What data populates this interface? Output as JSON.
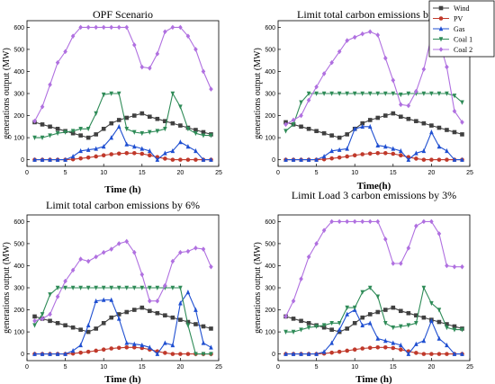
{
  "chart_data": {
    "type": "line",
    "legend": {
      "placement": "top-right",
      "series": [
        {
          "name": "Wind",
          "color": "#404040",
          "marker": "square"
        },
        {
          "name": "PV",
          "color": "#c0392b",
          "marker": "circle"
        },
        {
          "name": "Gas",
          "color": "#1f4fd1",
          "marker": "triangle-up"
        },
        {
          "name": "Coal 1",
          "color": "#2e8b57",
          "marker": "triangle-down"
        },
        {
          "name": "Coal 2",
          "color": "#b070e0",
          "marker": "diamond"
        }
      ]
    },
    "panels": [
      {
        "title": "OPF Scenario",
        "xlabel": "Time (h)",
        "ylabel": "generations output (MW)",
        "xlim": [
          0,
          25
        ],
        "ylim": [
          -30,
          630
        ],
        "xticks": [
          0,
          5,
          10,
          15,
          20,
          25
        ],
        "yticks": [
          0,
          100,
          200,
          300,
          400,
          500,
          600
        ],
        "x": [
          1,
          2,
          3,
          4,
          5,
          6,
          7,
          8,
          9,
          10,
          11,
          12,
          13,
          14,
          15,
          16,
          17,
          18,
          19,
          20,
          21,
          22,
          23,
          24
        ],
        "series": [
          {
            "name": "Wind",
            "values": [
              170,
              160,
              150,
              140,
              130,
              120,
              110,
              100,
              115,
              140,
              165,
              180,
              190,
              200,
              210,
              195,
              185,
              175,
              165,
              155,
              145,
              135,
              125,
              115
            ]
          },
          {
            "name": "PV",
            "values": [
              0,
              0,
              0,
              0,
              0,
              2,
              6,
              10,
              15,
              20,
              25,
              28,
              30,
              30,
              27,
              20,
              12,
              5,
              0,
              0,
              0,
              0,
              0,
              0
            ]
          },
          {
            "name": "Gas",
            "values": [
              0,
              0,
              0,
              0,
              0,
              15,
              40,
              45,
              50,
              60,
              100,
              150,
              70,
              60,
              50,
              40,
              0,
              30,
              40,
              80,
              60,
              40,
              0,
              0
            ]
          },
          {
            "name": "Coal 1",
            "values": [
              100,
              100,
              110,
              120,
              125,
              130,
              140,
              140,
              210,
              295,
              300,
              300,
              140,
              125,
              120,
              125,
              130,
              140,
              300,
              240,
              140,
              120,
              110,
              110
            ]
          },
          {
            "name": "Coal 2",
            "values": [
              175,
              240,
              340,
              440,
              490,
              560,
              600,
              600,
              600,
              600,
              600,
              600,
              600,
              520,
              420,
              415,
              480,
              580,
              600,
              600,
              560,
              500,
              400,
              320
            ]
          }
        ]
      },
      {
        "title": "Limit total carbon emissions by 3%",
        "xlabel": "Time(h)",
        "ylabel": "generations output (MW)",
        "xlim": [
          0,
          25
        ],
        "ylim": [
          -30,
          630
        ],
        "xticks": [
          0,
          5,
          10,
          15,
          20,
          25
        ],
        "yticks": [
          0,
          100,
          200,
          300,
          400,
          500,
          600
        ],
        "x": [
          1,
          2,
          3,
          4,
          5,
          6,
          7,
          8,
          9,
          10,
          11,
          12,
          13,
          14,
          15,
          16,
          17,
          18,
          19,
          20,
          21,
          22,
          23,
          24
        ],
        "series": [
          {
            "name": "Wind",
            "values": [
              170,
              160,
              150,
              140,
              130,
              120,
              110,
              100,
              115,
              140,
              165,
              180,
              190,
              200,
              210,
              195,
              185,
              175,
              165,
              155,
              145,
              135,
              125,
              115
            ]
          },
          {
            "name": "PV",
            "values": [
              0,
              0,
              0,
              0,
              0,
              2,
              6,
              10,
              15,
              20,
              25,
              28,
              30,
              30,
              27,
              20,
              12,
              5,
              0,
              0,
              0,
              0,
              0,
              0
            ]
          },
          {
            "name": "Gas",
            "values": [
              0,
              0,
              0,
              0,
              0,
              15,
              40,
              45,
              50,
              140,
              150,
              150,
              65,
              60,
              50,
              40,
              0,
              30,
              40,
              125,
              60,
              40,
              0,
              0
            ]
          },
          {
            "name": "Coal 1",
            "values": [
              130,
              160,
              260,
              300,
              300,
              300,
              300,
              300,
              300,
              300,
              300,
              300,
              300,
              300,
              300,
              295,
              300,
              300,
              300,
              300,
              300,
              300,
              290,
              260
            ]
          },
          {
            "name": "Coal 2",
            "values": [
              160,
              180,
              200,
              270,
              330,
              390,
              440,
              490,
              540,
              555,
              570,
              580,
              565,
              460,
              360,
              250,
              245,
              310,
              410,
              560,
              540,
              420,
              220,
              170
            ]
          }
        ]
      },
      {
        "title": "Limit total carbon emissions by 6%",
        "xlabel": "Time (h)",
        "ylabel": "generations output (MW)",
        "xlim": [
          0,
          25
        ],
        "ylim": [
          -30,
          630
        ],
        "xticks": [
          0,
          5,
          10,
          15,
          20,
          25
        ],
        "yticks": [
          0,
          100,
          200,
          300,
          400,
          500,
          600
        ],
        "x": [
          1,
          2,
          3,
          4,
          5,
          6,
          7,
          8,
          9,
          10,
          11,
          12,
          13,
          14,
          15,
          16,
          17,
          18,
          19,
          20,
          21,
          22,
          23,
          24
        ],
        "series": [
          {
            "name": "Wind",
            "values": [
              170,
              160,
              150,
              140,
              130,
              120,
              110,
              100,
              115,
              140,
              165,
              180,
              190,
              200,
              210,
              195,
              185,
              175,
              165,
              155,
              145,
              135,
              125,
              115
            ]
          },
          {
            "name": "PV",
            "values": [
              0,
              0,
              0,
              0,
              0,
              2,
              6,
              10,
              15,
              20,
              25,
              28,
              30,
              30,
              27,
              20,
              12,
              5,
              0,
              0,
              0,
              0,
              0,
              0
            ]
          },
          {
            "name": "Gas",
            "values": [
              0,
              0,
              0,
              0,
              0,
              15,
              40,
              130,
              240,
              245,
              245,
              160,
              50,
              45,
              40,
              30,
              0,
              50,
              40,
              230,
              280,
              200,
              50,
              30
            ]
          },
          {
            "name": "Coal 1",
            "values": [
              130,
              180,
              270,
              300,
              300,
              300,
              300,
              300,
              300,
              300,
              300,
              300,
              300,
              300,
              300,
              300,
              300,
              300,
              300,
              300,
              130,
              0,
              0,
              0
            ]
          },
          {
            "name": "Coal 2",
            "values": [
              150,
              160,
              180,
              260,
              330,
              380,
              430,
              420,
              440,
              460,
              475,
              500,
              510,
              460,
              360,
              240,
              240,
              310,
              420,
              460,
              465,
              480,
              475,
              395
            ]
          }
        ]
      },
      {
        "title": "Limit Load 3 carbon emissions by 3%",
        "xlabel": "Time (h)",
        "ylabel": "generations output (MW)",
        "xlim": [
          0,
          25
        ],
        "ylim": [
          -30,
          630
        ],
        "xticks": [
          0,
          5,
          10,
          15,
          20,
          25
        ],
        "yticks": [
          0,
          100,
          200,
          300,
          400,
          500,
          600
        ],
        "x": [
          1,
          2,
          3,
          4,
          5,
          6,
          7,
          8,
          9,
          10,
          11,
          12,
          13,
          14,
          15,
          16,
          17,
          18,
          19,
          20,
          21,
          22,
          23,
          24
        ],
        "series": [
          {
            "name": "Wind",
            "values": [
              170,
              160,
              150,
              140,
              130,
              120,
              110,
              100,
              115,
              140,
              165,
              180,
              190,
              200,
              210,
              195,
              185,
              175,
              165,
              155,
              145,
              135,
              125,
              115
            ]
          },
          {
            "name": "PV",
            "values": [
              0,
              0,
              0,
              0,
              0,
              2,
              6,
              10,
              15,
              20,
              25,
              28,
              30,
              30,
              27,
              20,
              12,
              5,
              0,
              0,
              0,
              0,
              0,
              0
            ]
          },
          {
            "name": "Gas",
            "values": [
              0,
              0,
              0,
              0,
              0,
              10,
              50,
              110,
              180,
              200,
              130,
              140,
              70,
              60,
              50,
              40,
              0,
              45,
              60,
              150,
              70,
              40,
              0,
              0
            ]
          },
          {
            "name": "Coal 1",
            "values": [
              100,
              100,
              110,
              120,
              125,
              130,
              140,
              140,
              210,
              210,
              280,
              300,
              260,
              140,
              120,
              125,
              130,
              140,
              300,
              230,
              200,
              120,
              110,
              110
            ]
          },
          {
            "name": "Coal 2",
            "values": [
              170,
              240,
              340,
              440,
              500,
              560,
              600,
              600,
              600,
              600,
              600,
              600,
              600,
              520,
              410,
              410,
              480,
              580,
              600,
              600,
              545,
              400,
              395,
              395
            ]
          }
        ]
      }
    ]
  }
}
